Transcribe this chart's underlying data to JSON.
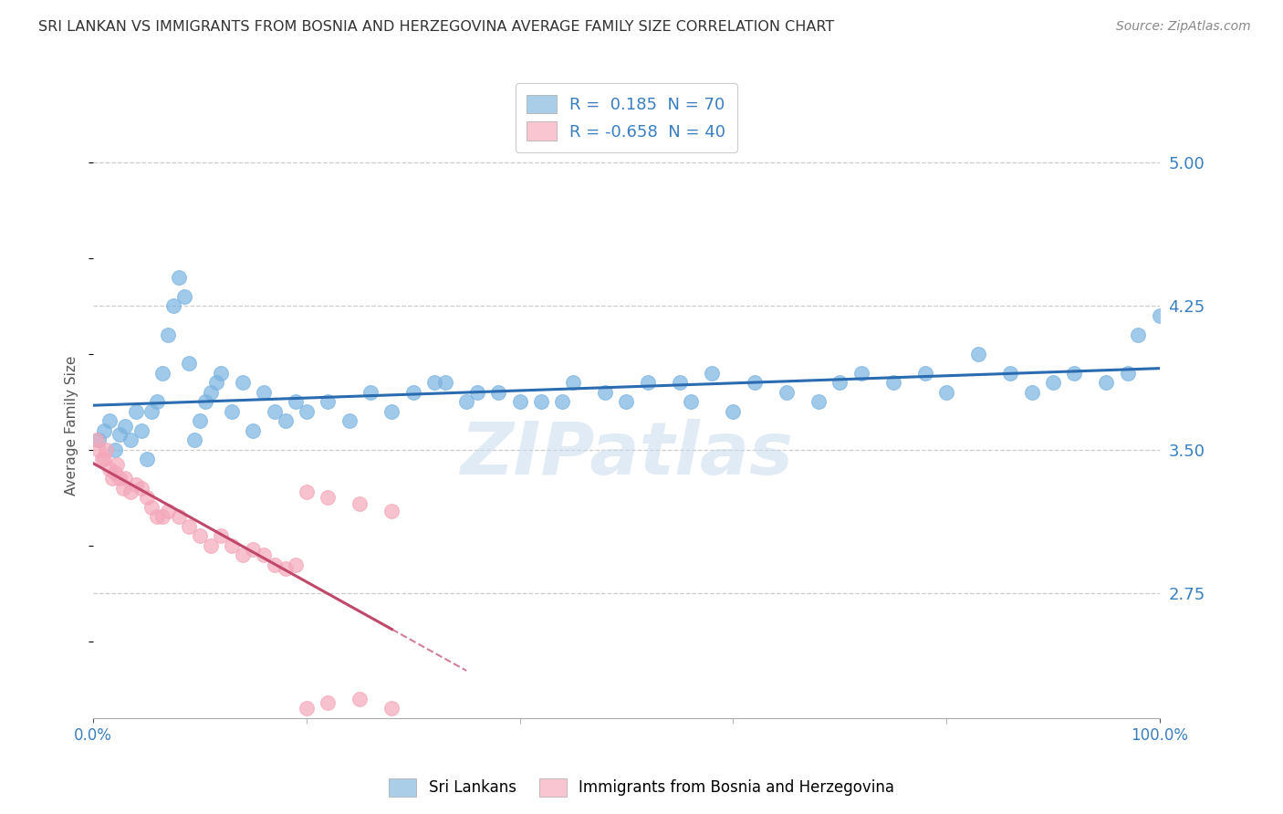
{
  "title": "SRI LANKAN VS IMMIGRANTS FROM BOSNIA AND HERZEGOVINA AVERAGE FAMILY SIZE CORRELATION CHART",
  "source": "Source: ZipAtlas.com",
  "ylabel": "Average Family Size",
  "xlabel": "",
  "xlim": [
    0,
    100
  ],
  "ylim": [
    2.1,
    5.15
  ],
  "yticks": [
    2.75,
    3.5,
    4.25,
    5.0
  ],
  "xticks": [
    0,
    100
  ],
  "xticklabels": [
    "0.0%",
    "100.0%"
  ],
  "yticklabels": [
    "2.75",
    "3.50",
    "4.25",
    "5.00"
  ],
  "title_color": "#333333",
  "title_fontsize": 13,
  "axis_color": "#5b9bd5",
  "watermark": "ZIPatlas",
  "color1": "#7ab3e0",
  "color2": "#f4a7b9",
  "line_color1": "#2b6cb0",
  "line_color2": "#c0486a",
  "legend_color1": "#aacde8",
  "legend_color2": "#f9c5d1",
  "background_color": "#ffffff",
  "grid_color": "#c8c8c8",
  "grid_style": "--",
  "sri_x": [
    0.5,
    1.0,
    1.5,
    2.0,
    2.5,
    3.0,
    3.5,
    4.0,
    4.5,
    5.0,
    5.5,
    6.0,
    6.5,
    7.0,
    7.5,
    8.0,
    8.5,
    9.0,
    9.5,
    10.0,
    10.5,
    11.0,
    11.5,
    12.0,
    13.0,
    14.0,
    15.0,
    16.0,
    17.0,
    18.0,
    19.0,
    20.0,
    22.0,
    24.0,
    26.0,
    28.0,
    30.0,
    32.0,
    35.0,
    38.0,
    40.0,
    42.0,
    45.0,
    48.0,
    50.0,
    52.0,
    55.0,
    58.0,
    60.0,
    62.0,
    65.0,
    68.0,
    70.0,
    72.0,
    75.0,
    78.0,
    80.0,
    83.0,
    86.0,
    88.0,
    90.0,
    92.0,
    95.0,
    97.0,
    98.0,
    100.0,
    56.0,
    44.0,
    36.0,
    33.0
  ],
  "sri_y": [
    3.55,
    3.6,
    3.65,
    3.5,
    3.58,
    3.62,
    3.55,
    3.7,
    3.6,
    3.45,
    3.7,
    3.75,
    3.9,
    4.1,
    4.25,
    4.4,
    4.3,
    3.95,
    3.55,
    3.65,
    3.75,
    3.8,
    3.85,
    3.9,
    3.7,
    3.85,
    3.6,
    3.8,
    3.7,
    3.65,
    3.75,
    3.7,
    3.75,
    3.65,
    3.8,
    3.7,
    3.8,
    3.85,
    3.75,
    3.8,
    3.75,
    3.75,
    3.85,
    3.8,
    3.75,
    3.85,
    3.85,
    3.9,
    3.7,
    3.85,
    3.8,
    3.75,
    3.85,
    3.9,
    3.85,
    3.9,
    3.8,
    4.0,
    3.9,
    3.8,
    3.85,
    3.9,
    3.85,
    3.9,
    4.1,
    4.2,
    3.75,
    3.75,
    3.8,
    3.85
  ],
  "bos_x": [
    0.3,
    0.5,
    0.8,
    1.0,
    1.2,
    1.5,
    1.8,
    2.0,
    2.2,
    2.5,
    2.8,
    3.0,
    3.5,
    4.0,
    4.5,
    5.0,
    5.5,
    6.0,
    6.5,
    7.0,
    8.0,
    9.0,
    10.0,
    11.0,
    12.0,
    13.0,
    14.0,
    15.0,
    16.0,
    17.0,
    18.0,
    19.0,
    20.0,
    22.0,
    25.0,
    28.0,
    22.0,
    20.0,
    25.0,
    28.0
  ],
  "bos_y": [
    3.55,
    3.5,
    3.45,
    3.45,
    3.5,
    3.4,
    3.35,
    3.38,
    3.42,
    3.35,
    3.3,
    3.35,
    3.28,
    3.32,
    3.3,
    3.25,
    3.2,
    3.15,
    3.15,
    3.18,
    3.15,
    3.1,
    3.05,
    3.0,
    3.05,
    3.0,
    2.95,
    2.98,
    2.95,
    2.9,
    2.88,
    2.9,
    2.15,
    2.18,
    2.2,
    2.15,
    3.25,
    3.28,
    3.22,
    3.18
  ],
  "legend_label1": "R =  0.185  N = 70",
  "legend_label2": "R = -0.658  N = 40",
  "bottom_label1": "Sri Lankans",
  "bottom_label2": "Immigrants from Bosnia and Herzegovina"
}
